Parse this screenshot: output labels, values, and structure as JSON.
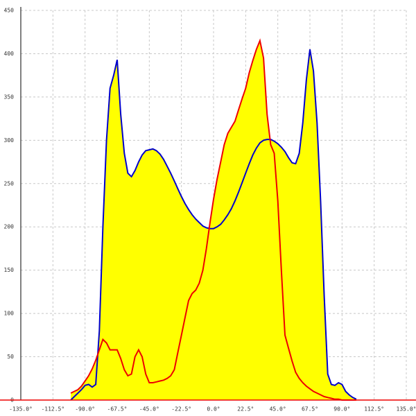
{
  "chart_data": {
    "type": "line",
    "x": [
      -100,
      -97.5,
      -95,
      -92.5,
      -90,
      -87.5,
      -85,
      -82.5,
      -80,
      -77.5,
      -75,
      -72.5,
      -70,
      -67.5,
      -65,
      -62.5,
      -60,
      -57.5,
      -55,
      -52.5,
      -50,
      -47.5,
      -45,
      -42.5,
      -40,
      -37.5,
      -35,
      -32.5,
      -30,
      -27.5,
      -25,
      -22.5,
      -20,
      -17.5,
      -15,
      -12.5,
      -10,
      -7.5,
      -5,
      -2.5,
      0,
      2.5,
      5,
      7.5,
      10,
      12.5,
      15,
      17.5,
      20,
      22.5,
      25,
      27.5,
      30,
      32.5,
      35,
      37.5,
      40,
      42.5,
      45,
      47.5,
      50,
      52.5,
      55,
      57.5,
      60,
      62.5,
      65,
      67.5,
      70,
      72.5,
      75,
      77.5,
      80,
      82.5,
      85,
      87.5,
      90,
      92.5,
      95,
      97.5,
      100
    ],
    "series": [
      {
        "color": "#0000cc",
        "fill": "#ffff00",
        "values": [
          0,
          4,
          8,
          12,
          17,
          18,
          15,
          18,
          80,
          200,
          300,
          360,
          375,
          393,
          330,
          285,
          262,
          258,
          265,
          275,
          283,
          288,
          289,
          290,
          288,
          284,
          278,
          270,
          262,
          253,
          244,
          235,
          227,
          220,
          214,
          209,
          205,
          201,
          199,
          198,
          198,
          200,
          203,
          208,
          214,
          221,
          230,
          240,
          251,
          262,
          273,
          283,
          291,
          297,
          300,
          301,
          301,
          299,
          296,
          292,
          287,
          280,
          274,
          273,
          285,
          320,
          370,
          405,
          380,
          320,
          230,
          120,
          30,
          18,
          17,
          20,
          18,
          10,
          6,
          3,
          1
        ]
      },
      {
        "color": "#ee0000",
        "fill": "#ffff00",
        "values": [
          8,
          10,
          12,
          16,
          22,
          28,
          36,
          46,
          58,
          70,
          66,
          58,
          58,
          58,
          48,
          35,
          28,
          30,
          50,
          58,
          50,
          30,
          20,
          20,
          21,
          22,
          23,
          25,
          28,
          35,
          55,
          75,
          95,
          115,
          123,
          127,
          135,
          150,
          175,
          205,
          232,
          255,
          275,
          295,
          308,
          315,
          322,
          335,
          348,
          360,
          378,
          392,
          405,
          415,
          395,
          330,
          295,
          285,
          230,
          150,
          75,
          60,
          45,
          32,
          25,
          20,
          16,
          13,
          10,
          8,
          6,
          4,
          3,
          2,
          1,
          1,
          0,
          0,
          0,
          0,
          0
        ]
      }
    ],
    "xlim": [
      -135,
      135
    ],
    "xticks": [
      {
        "value": -135,
        "label": "-135.0°"
      },
      {
        "value": -112.5,
        "label": "-112.5°"
      },
      {
        "value": -90,
        "label": "-90.0°"
      },
      {
        "value": -67.5,
        "label": "-67.5°"
      },
      {
        "value": -45,
        "label": "-45.0°"
      },
      {
        "value": -22.5,
        "label": "-22.5°"
      },
      {
        "value": 0,
        "label": "0.0°"
      },
      {
        "value": 22.5,
        "label": "22.5°"
      },
      {
        "value": 45,
        "label": "45.0°"
      },
      {
        "value": 67.5,
        "label": "67.5°"
      },
      {
        "value": 90,
        "label": "90.0°"
      },
      {
        "value": 112.5,
        "label": "112.5°"
      },
      {
        "value": 135,
        "label": "135.0°"
      }
    ],
    "ylim": [
      0,
      450
    ],
    "yticks": [
      0,
      50,
      100,
      150,
      200,
      250,
      300,
      350,
      400,
      450
    ],
    "grid": true
  }
}
